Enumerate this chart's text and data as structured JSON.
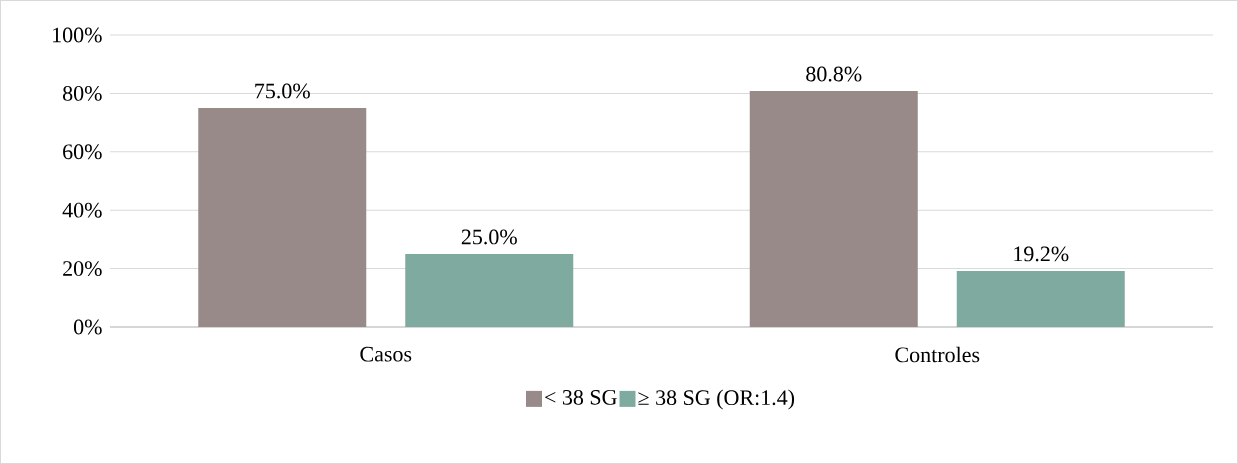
{
  "chart_data": {
    "type": "bar",
    "categories": [
      "Casos",
      "Controles"
    ],
    "series": [
      {
        "name": "< 38 SG",
        "color": "#978a89",
        "values": [
          75.0,
          80.8
        ],
        "value_labels": [
          "75.0%",
          "80.8%"
        ]
      },
      {
        "name": "≥ 38 SG (OR:1.4)",
        "color": "#7faa9f",
        "values": [
          25.0,
          19.2
        ],
        "value_labels": [
          "25.0%",
          "19.2%"
        ]
      }
    ],
    "ylim": [
      0,
      100
    ],
    "yticks": [
      {
        "value": 0,
        "label": "0%"
      },
      {
        "value": 20,
        "label": "20%"
      },
      {
        "value": 40,
        "label": "40%"
      },
      {
        "value": 60,
        "label": "60%"
      },
      {
        "value": 80,
        "label": "80%"
      },
      {
        "value": 100,
        "label": "100%"
      }
    ],
    "grid": "y",
    "legend": "bottom"
  }
}
